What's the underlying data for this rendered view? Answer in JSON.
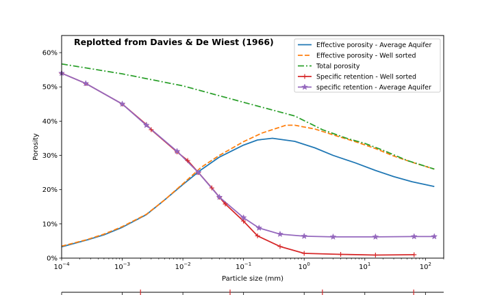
{
  "chart_data": {
    "type": "line",
    "annotation": "Replotted from Davies & De Wiest (1966)",
    "xlabel": "Particle size (mm)",
    "ylabel": "Porosity",
    "x_scale": "log",
    "xlim": [
      0.0001,
      200
    ],
    "ylim": [
      0,
      0.65
    ],
    "x_ticks": [
      {
        "value": 0.0001,
        "base": "10",
        "exp": "−4"
      },
      {
        "value": 0.001,
        "base": "10",
        "exp": "−3"
      },
      {
        "value": 0.01,
        "base": "10",
        "exp": "−2"
      },
      {
        "value": 0.1,
        "base": "10",
        "exp": "−1"
      },
      {
        "value": 1,
        "base": "10",
        "exp": "0"
      },
      {
        "value": 10,
        "base": "10",
        "exp": "1"
      },
      {
        "value": 100,
        "base": "10",
        "exp": "2"
      }
    ],
    "y_ticks": [
      {
        "value": 0,
        "label": "0%"
      },
      {
        "value": 0.1,
        "label": "10%"
      },
      {
        "value": 0.2,
        "label": "20%"
      },
      {
        "value": 0.3,
        "label": "30%"
      },
      {
        "value": 0.4,
        "label": "40%"
      },
      {
        "value": 0.5,
        "label": "50%"
      },
      {
        "value": 0.6,
        "label": "60%"
      }
    ],
    "grid": false,
    "legend_position": "top-right",
    "series": [
      {
        "name": "Effective porosity - Average Aquifer",
        "color": "#1f77b4",
        "dash": "solid",
        "marker": "none",
        "x": [
          0.0001,
          0.00025,
          0.0005,
          0.001,
          0.0025,
          0.005,
          0.01,
          0.02,
          0.04,
          0.1,
          0.17,
          0.3,
          0.7,
          1.5,
          3,
          7,
          15,
          30,
          60,
          140
        ],
        "y": [
          0.033,
          0.052,
          0.068,
          0.09,
          0.127,
          0.17,
          0.215,
          0.258,
          0.295,
          0.33,
          0.345,
          0.35,
          0.341,
          0.322,
          0.3,
          0.278,
          0.256,
          0.238,
          0.223,
          0.209
        ]
      },
      {
        "name": "Effective porosity - Well sorted",
        "color": "#ff7f0e",
        "dash": "dashed",
        "marker": "none",
        "x": [
          0.0001,
          0.00025,
          0.0005,
          0.001,
          0.0025,
          0.005,
          0.01,
          0.02,
          0.04,
          0.1,
          0.2,
          0.5,
          0.7,
          1.5,
          3,
          7,
          15,
          30,
          60,
          140
        ],
        "y": [
          0.035,
          0.053,
          0.07,
          0.092,
          0.128,
          0.17,
          0.217,
          0.265,
          0.3,
          0.34,
          0.365,
          0.388,
          0.388,
          0.377,
          0.36,
          0.34,
          0.32,
          0.298,
          0.28,
          0.26
        ]
      },
      {
        "name": "Total porosity",
        "color": "#2ca02c",
        "dash": "dashdot",
        "marker": "none",
        "x": [
          0.0001,
          0.001,
          0.01,
          0.1,
          0.7,
          2,
          5,
          10,
          20,
          50,
          140
        ],
        "y": [
          0.567,
          0.538,
          0.503,
          0.455,
          0.415,
          0.375,
          0.35,
          0.335,
          0.315,
          0.285,
          0.26
        ]
      },
      {
        "name": "Specific retention - Well sorted",
        "color": "#d62728",
        "dash": "solid",
        "marker": "plus",
        "x": [
          0.0001,
          0.00025,
          0.001,
          0.0025,
          0.003,
          0.008,
          0.012,
          0.018,
          0.03,
          0.04,
          0.05,
          0.1,
          0.17,
          0.4,
          1,
          4,
          15,
          65
        ],
        "y": [
          0.54,
          0.51,
          0.45,
          0.39,
          0.375,
          0.31,
          0.285,
          0.25,
          0.205,
          0.178,
          0.158,
          0.108,
          0.065,
          0.034,
          0.014,
          0.011,
          0.009,
          0.01
        ]
      },
      {
        "name": "specific retention - Average Aquifer",
        "color": "#9467bd",
        "dash": "solid",
        "marker": "star",
        "x": [
          0.0001,
          0.00025,
          0.001,
          0.0025,
          0.008,
          0.018,
          0.04,
          0.1,
          0.18,
          0.4,
          1,
          3,
          15,
          65,
          140
        ],
        "y": [
          0.54,
          0.51,
          0.45,
          0.388,
          0.312,
          0.25,
          0.178,
          0.118,
          0.088,
          0.07,
          0.064,
          0.062,
          0.062,
          0.063,
          0.063
        ]
      }
    ]
  },
  "bottom_axis": {
    "tick_color": "#000000",
    "marker_color": "#d62728",
    "major_ticks": [
      0.0001,
      0.001,
      0.01,
      0.1,
      1,
      10,
      100
    ],
    "red_marks": [
      0.002,
      0.06,
      2,
      64
    ]
  }
}
